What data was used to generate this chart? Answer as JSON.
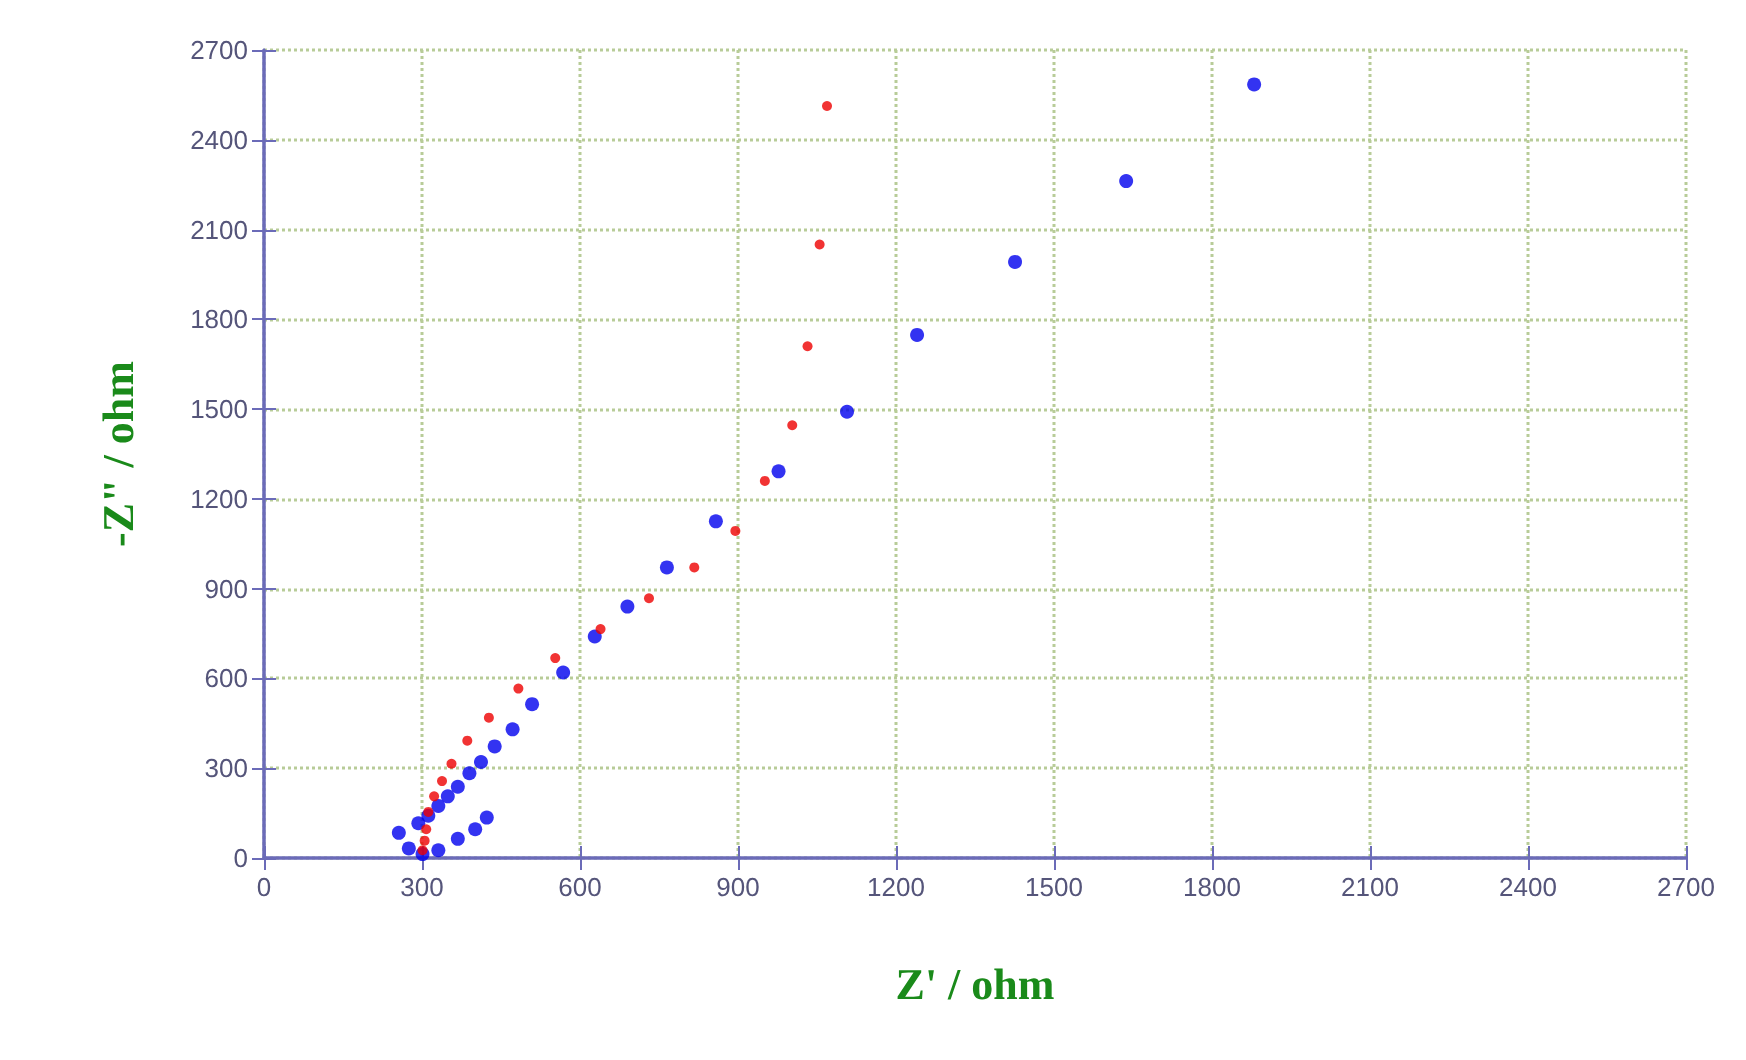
{
  "chart_data": {
    "type": "scatter",
    "xlabel": "Z' / ohm",
    "ylabel": "-Z\" / ohm",
    "xlim": [
      0,
      2700
    ],
    "ylim": [
      0,
      2700
    ],
    "xticks": [
      0,
      300,
      600,
      900,
      1200,
      1500,
      1800,
      2100,
      2400,
      2700
    ],
    "yticks": [
      0,
      300,
      600,
      900,
      1200,
      1500,
      1800,
      2100,
      2400,
      2700
    ],
    "grid": true,
    "marker": "circle",
    "series": [
      {
        "color": "#0000ee",
        "x": [
          256,
          275,
          301,
          331,
          368,
          401,
          423,
          293,
          312,
          331,
          349,
          368,
          390,
          412,
          438,
          472,
          509,
          568,
          628,
          690,
          765,
          858,
          977,
          1107,
          1240,
          1426,
          1637,
          1880
        ],
        "values": [
          84,
          32,
          13,
          26,
          64,
          96,
          135,
          116,
          141,
          174,
          206,
          238,
          283,
          321,
          373,
          430,
          514,
          620,
          740,
          840,
          971,
          1125,
          1292,
          1491,
          1748,
          1992,
          2262,
          2585
        ]
      },
      {
        "color": "#ee0000",
        "x": [
          301,
          305,
          308,
          312,
          323,
          338,
          356,
          386,
          427,
          483,
          553,
          639,
          731,
          817,
          895,
          951,
          1003,
          1032,
          1055,
          1069
        ],
        "values": [
          26,
          58,
          96,
          154,
          206,
          257,
          315,
          392,
          469,
          566,
          668,
          765,
          868,
          971,
          1093,
          1260,
          1446,
          1710,
          2050,
          2513
        ]
      }
    ]
  }
}
